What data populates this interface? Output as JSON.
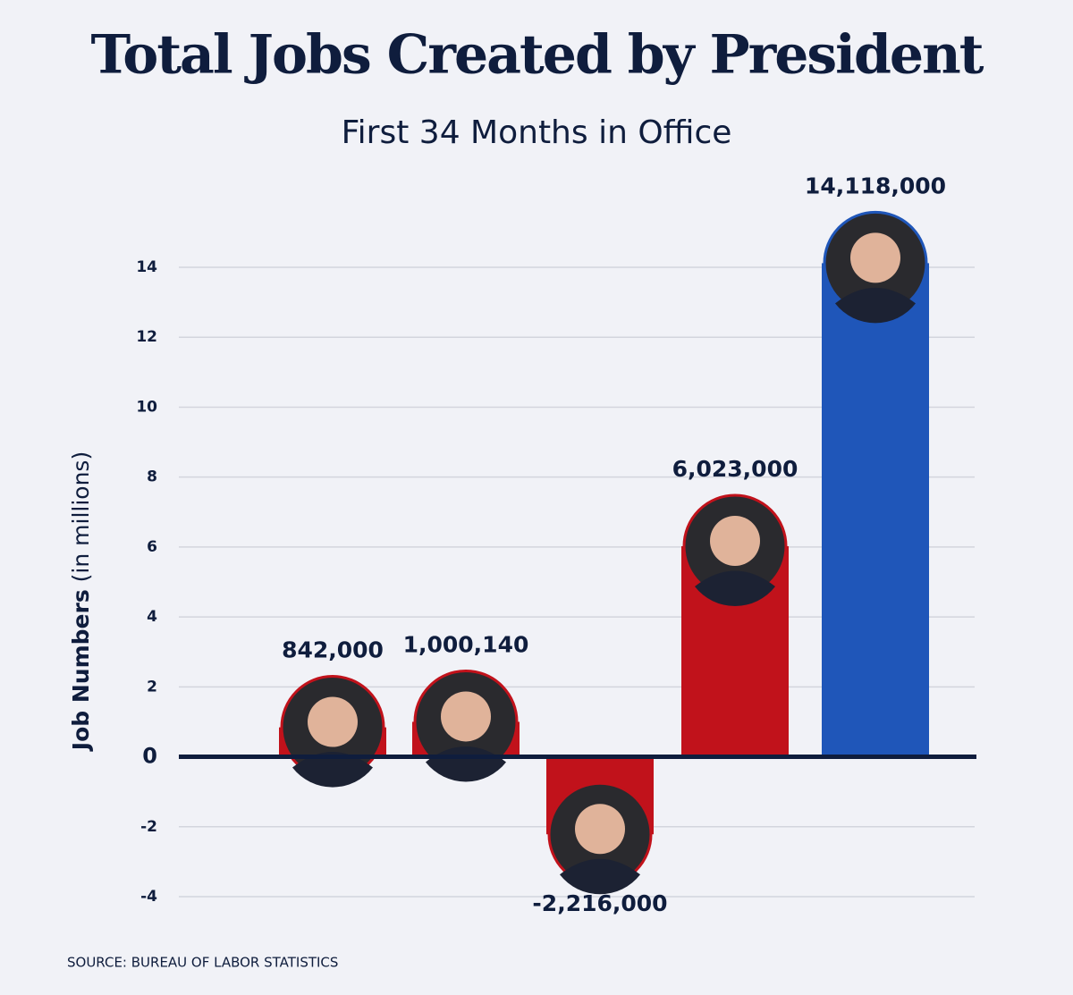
{
  "chart_data": {
    "type": "bar",
    "title": "Total Jobs Created by President",
    "subtitle": "First 34 Months in Office",
    "y_label": "Job Numbers",
    "y_label_unit": "(in millions)",
    "source": "SOURCE: BUREAU OF LABOR STATISTICS",
    "values": [
      0.842,
      1.00014,
      -2.216,
      6.023,
      14.118
    ],
    "value_labels": [
      "842,000",
      "1,000,140",
      "-2,216,000",
      "6,023,000",
      "14,118,000"
    ],
    "colors": [
      "#c1121b",
      "#c1121b",
      "#c1121b",
      "#c1121b",
      "#1f56b9"
    ],
    "ylim": [
      -4,
      14
    ],
    "yticks": [
      -4,
      -2,
      0,
      2,
      4,
      6,
      8,
      10,
      12,
      14
    ],
    "grid": true
  }
}
